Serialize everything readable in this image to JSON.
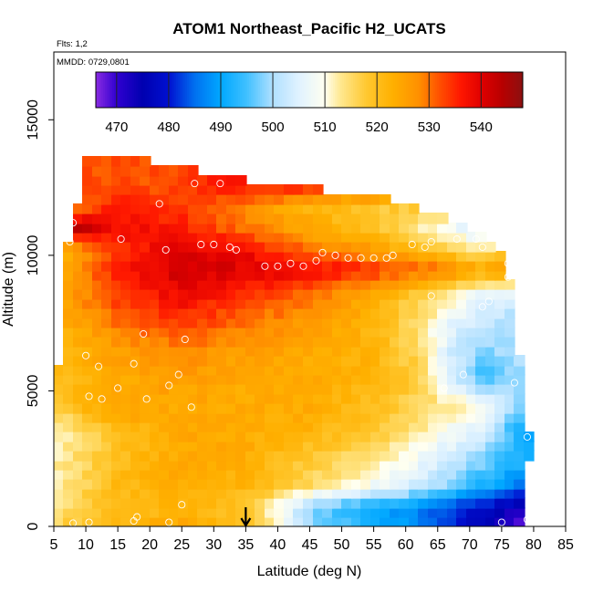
{
  "chart_data": {
    "type": "heatmap",
    "title": "ATOM1 Northeast_Pacific H2_UCATS",
    "flights": "Flts: 1,2",
    "dates": "MMDD: 0729,0801",
    "xlabel": "Latitude (deg N)",
    "ylabel": "Altitude (m)",
    "xlim": [
      5,
      85
    ],
    "ylim": [
      0,
      17500
    ],
    "x_ticks": [
      5,
      10,
      15,
      20,
      25,
      30,
      35,
      40,
      45,
      50,
      55,
      60,
      65,
      70,
      75,
      80,
      85
    ],
    "y_ticks": [
      0,
      5000,
      10000,
      15000
    ],
    "colorbar": {
      "range": [
        466,
        548
      ],
      "ticks": [
        470,
        480,
        490,
        500,
        510,
        520,
        530,
        540
      ],
      "stops": [
        {
          "v": 466,
          "c": "#8a2be2"
        },
        {
          "v": 470,
          "c": "#3000d0"
        },
        {
          "v": 475,
          "c": "#0000b0"
        },
        {
          "v": 480,
          "c": "#0010d0"
        },
        {
          "v": 485,
          "c": "#0070f0"
        },
        {
          "v": 490,
          "c": "#00a8ff"
        },
        {
          "v": 495,
          "c": "#40c0ff"
        },
        {
          "v": 500,
          "c": "#b0e0ff"
        },
        {
          "v": 505,
          "c": "#e0f2ff"
        },
        {
          "v": 510,
          "c": "#fffff0"
        },
        {
          "v": 513,
          "c": "#ffe890"
        },
        {
          "v": 518,
          "c": "#ffc830"
        },
        {
          "v": 523,
          "c": "#ffb000"
        },
        {
          "v": 528,
          "c": "#ff9000"
        },
        {
          "v": 532,
          "c": "#ff5000"
        },
        {
          "v": 536,
          "c": "#ff1800"
        },
        {
          "v": 540,
          "c": "#e00000"
        },
        {
          "v": 544,
          "c": "#b80000"
        },
        {
          "v": 548,
          "c": "#8b1010"
        }
      ]
    },
    "grid": false,
    "marker": {
      "x": 35,
      "label_arrow": "down"
    },
    "x_bin_width": 1.5,
    "z_bin_height": 350,
    "shape_xmin_vs_z": [
      [
        0,
        5.5
      ],
      [
        4000,
        5.5
      ],
      [
        6500,
        5.8
      ],
      [
        9500,
        6.5
      ],
      [
        11500,
        7.8
      ],
      [
        12000,
        9.5
      ]
    ],
    "shape_xmax_vs_z": [
      [
        0,
        78.5
      ],
      [
        1000,
        78.5
      ],
      [
        3000,
        79.5
      ],
      [
        3500,
        79.5
      ],
      [
        4000,
        78.5
      ],
      [
        5500,
        78.5
      ],
      [
        6500,
        77.5
      ],
      [
        8000,
        77.0
      ],
      [
        9500,
        76.0
      ],
      [
        10500,
        73.5
      ],
      [
        11000,
        70.0
      ],
      [
        11500,
        66.0
      ],
      [
        12200,
        55.0
      ],
      [
        12600,
        40.0
      ],
      [
        13000,
        30.0
      ],
      [
        13500,
        20.0
      ]
    ],
    "field_anchors": [
      {
        "z": 0,
        "x": [
          5,
          15,
          25,
          35,
          40,
          45,
          50,
          60,
          70,
          78.5
        ],
        "v": [
          516,
          522,
          524,
          520,
          512,
          500,
          495,
          488,
          478,
          468
        ]
      },
      {
        "z": 700,
        "x": [
          5,
          15,
          25,
          35,
          40,
          45,
          50,
          60,
          70,
          78.5
        ],
        "v": [
          514,
          520,
          522,
          518,
          510,
          498,
          494,
          488,
          480,
          472
        ]
      },
      {
        "z": 1500,
        "x": [
          5,
          15,
          25,
          35,
          45,
          55,
          65,
          72,
          78.5
        ],
        "v": [
          512,
          521,
          524,
          522,
          515,
          508,
          500,
          492,
          485
        ]
      },
      {
        "z": 2500,
        "x": [
          5,
          15,
          25,
          35,
          45,
          55,
          65,
          72,
          78.5
        ],
        "v": [
          512,
          520,
          524,
          523,
          518,
          514,
          505,
          498,
          492
        ]
      },
      {
        "z": 3500,
        "x": [
          5,
          15,
          25,
          35,
          45,
          55,
          65,
          72,
          79.5
        ],
        "v": [
          510,
          520,
          524,
          524,
          522,
          518,
          510,
          504,
          488
        ]
      },
      {
        "z": 4500,
        "x": [
          5,
          15,
          25,
          35,
          45,
          55,
          65,
          72,
          78.5
        ],
        "v": [
          518,
          526,
          524,
          524,
          524,
          520,
          514,
          510,
          496
        ]
      },
      {
        "z": 5500,
        "x": [
          5,
          15,
          25,
          35,
          45,
          55,
          62,
          67,
          72,
          78
        ],
        "v": [
          520,
          524,
          526,
          524,
          524,
          522,
          518,
          505,
          494,
          500
        ]
      },
      {
        "z": 6500,
        "x": [
          5,
          15,
          25,
          35,
          45,
          55,
          62,
          67,
          72,
          77.5
        ],
        "v": [
          520,
          526,
          528,
          526,
          524,
          522,
          515,
          504,
          498,
          500
        ]
      },
      {
        "z": 7500,
        "x": [
          5,
          15,
          25,
          35,
          45,
          55,
          62,
          67,
          72,
          77
        ],
        "v": [
          522,
          530,
          534,
          530,
          526,
          522,
          515,
          506,
          502,
          500
        ]
      },
      {
        "z": 8500,
        "x": [
          6,
          15,
          25,
          35,
          45,
          55,
          62,
          67,
          72,
          76.5
        ],
        "v": [
          524,
          534,
          538,
          534,
          530,
          524,
          516,
          512,
          506,
          504
        ]
      },
      {
        "z": 9500,
        "x": [
          6.5,
          15,
          25,
          35,
          45,
          55,
          65,
          72,
          76
        ],
        "v": [
          524,
          536,
          542,
          540,
          538,
          534,
          530,
          524,
          528
        ]
      },
      {
        "z": 10200,
        "x": [
          7,
          15,
          25,
          35,
          45,
          55,
          65,
          72,
          74
        ],
        "v": [
          522,
          534,
          540,
          538,
          530,
          526,
          520,
          512,
          516
        ]
      },
      {
        "z": 11000,
        "x": [
          7.5,
          15,
          25,
          35,
          45,
          55,
          65,
          70
        ],
        "v": [
          545,
          538,
          536,
          530,
          524,
          520,
          510,
          505
        ]
      },
      {
        "z": 11800,
        "x": [
          9,
          15,
          25,
          35,
          45,
          55
        ],
        "v": [
          530,
          536,
          534,
          528,
          522,
          518
        ]
      },
      {
        "z": 12600,
        "x": [
          22,
          27,
          30
        ],
        "v": [
          532,
          534,
          536
        ]
      }
    ],
    "points": [
      [
        8,
        11200
      ],
      [
        7.5,
        10500
      ],
      [
        15.5,
        10600
      ],
      [
        21.5,
        11900
      ],
      [
        22.5,
        10200
      ],
      [
        28,
        10400
      ],
      [
        30,
        10400
      ],
      [
        32.5,
        10300
      ],
      [
        33.5,
        10200
      ],
      [
        27,
        12650
      ],
      [
        31,
        12650
      ],
      [
        38,
        9600
      ],
      [
        40,
        9600
      ],
      [
        42,
        9700
      ],
      [
        44,
        9600
      ],
      [
        46,
        9800
      ],
      [
        47,
        10100
      ],
      [
        49,
        10000
      ],
      [
        51,
        9900
      ],
      [
        53,
        9900
      ],
      [
        55,
        9900
      ],
      [
        57,
        9900
      ],
      [
        58,
        10000
      ],
      [
        63,
        10300
      ],
      [
        61,
        10400
      ],
      [
        64,
        10500
      ],
      [
        68,
        10600
      ],
      [
        71,
        10600
      ],
      [
        72,
        10300
      ],
      [
        76,
        9700
      ],
      [
        76,
        9200
      ],
      [
        64,
        8500
      ],
      [
        72,
        8100
      ],
      [
        73,
        8300
      ],
      [
        19,
        7100
      ],
      [
        25.5,
        6900
      ],
      [
        10,
        6300
      ],
      [
        12,
        5900
      ],
      [
        17.5,
        6000
      ],
      [
        24.5,
        5600
      ],
      [
        23,
        5200
      ],
      [
        15,
        5100
      ],
      [
        10.5,
        4800
      ],
      [
        12.5,
        4700
      ],
      [
        19.5,
        4700
      ],
      [
        26.5,
        4400
      ],
      [
        69,
        5600
      ],
      [
        66,
        5100
      ],
      [
        77,
        5300
      ],
      [
        79,
        3300
      ],
      [
        5.5,
        6100
      ],
      [
        25,
        800
      ],
      [
        18,
        350
      ],
      [
        17.5,
        200
      ],
      [
        23,
        150
      ],
      [
        10.5,
        150
      ],
      [
        8,
        120
      ],
      [
        75,
        150
      ],
      [
        79,
        250
      ]
    ]
  }
}
